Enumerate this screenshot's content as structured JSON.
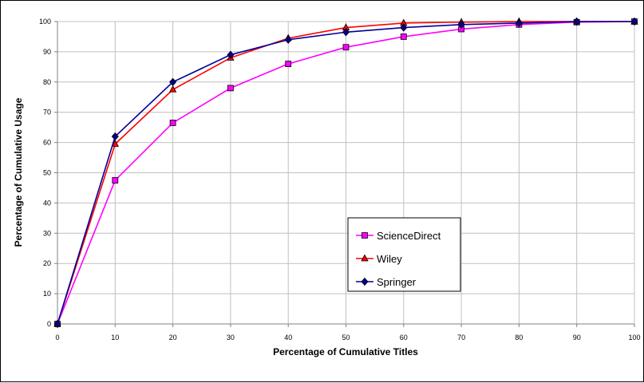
{
  "chart_data": {
    "type": "line",
    "title": "",
    "xlabel": "Percentage of Cumulative Titles",
    "ylabel": "Percentage of Cumulative Usage",
    "x": [
      0,
      10,
      20,
      30,
      40,
      50,
      60,
      70,
      80,
      90,
      100
    ],
    "xlim": [
      0,
      100
    ],
    "ylim": [
      0,
      100
    ],
    "xticks": [
      "0",
      "10",
      "20",
      "30",
      "40",
      "50",
      "60",
      "70",
      "80",
      "90",
      "100"
    ],
    "yticks": [
      "0",
      "10",
      "20",
      "30",
      "40",
      "50",
      "60",
      "70",
      "80",
      "90",
      "100"
    ],
    "grid": true,
    "legend_position": "center-right",
    "series": [
      {
        "name": "ScienceDirect",
        "color": "#ff00ff",
        "marker": "square",
        "values": [
          0,
          47.5,
          66.5,
          78,
          86,
          91.5,
          95,
          97.5,
          99,
          99.8,
          100
        ]
      },
      {
        "name": "Wiley",
        "color": "#ff0000",
        "marker": "triangle",
        "values": [
          0,
          59.5,
          77.5,
          88,
          94.5,
          98,
          99.5,
          99.8,
          100,
          100,
          100
        ]
      },
      {
        "name": "Springer",
        "color": "#000099",
        "marker": "diamond",
        "values": [
          0,
          62,
          80,
          89,
          94,
          96.5,
          98,
          99,
          99.5,
          100,
          100
        ]
      }
    ]
  }
}
